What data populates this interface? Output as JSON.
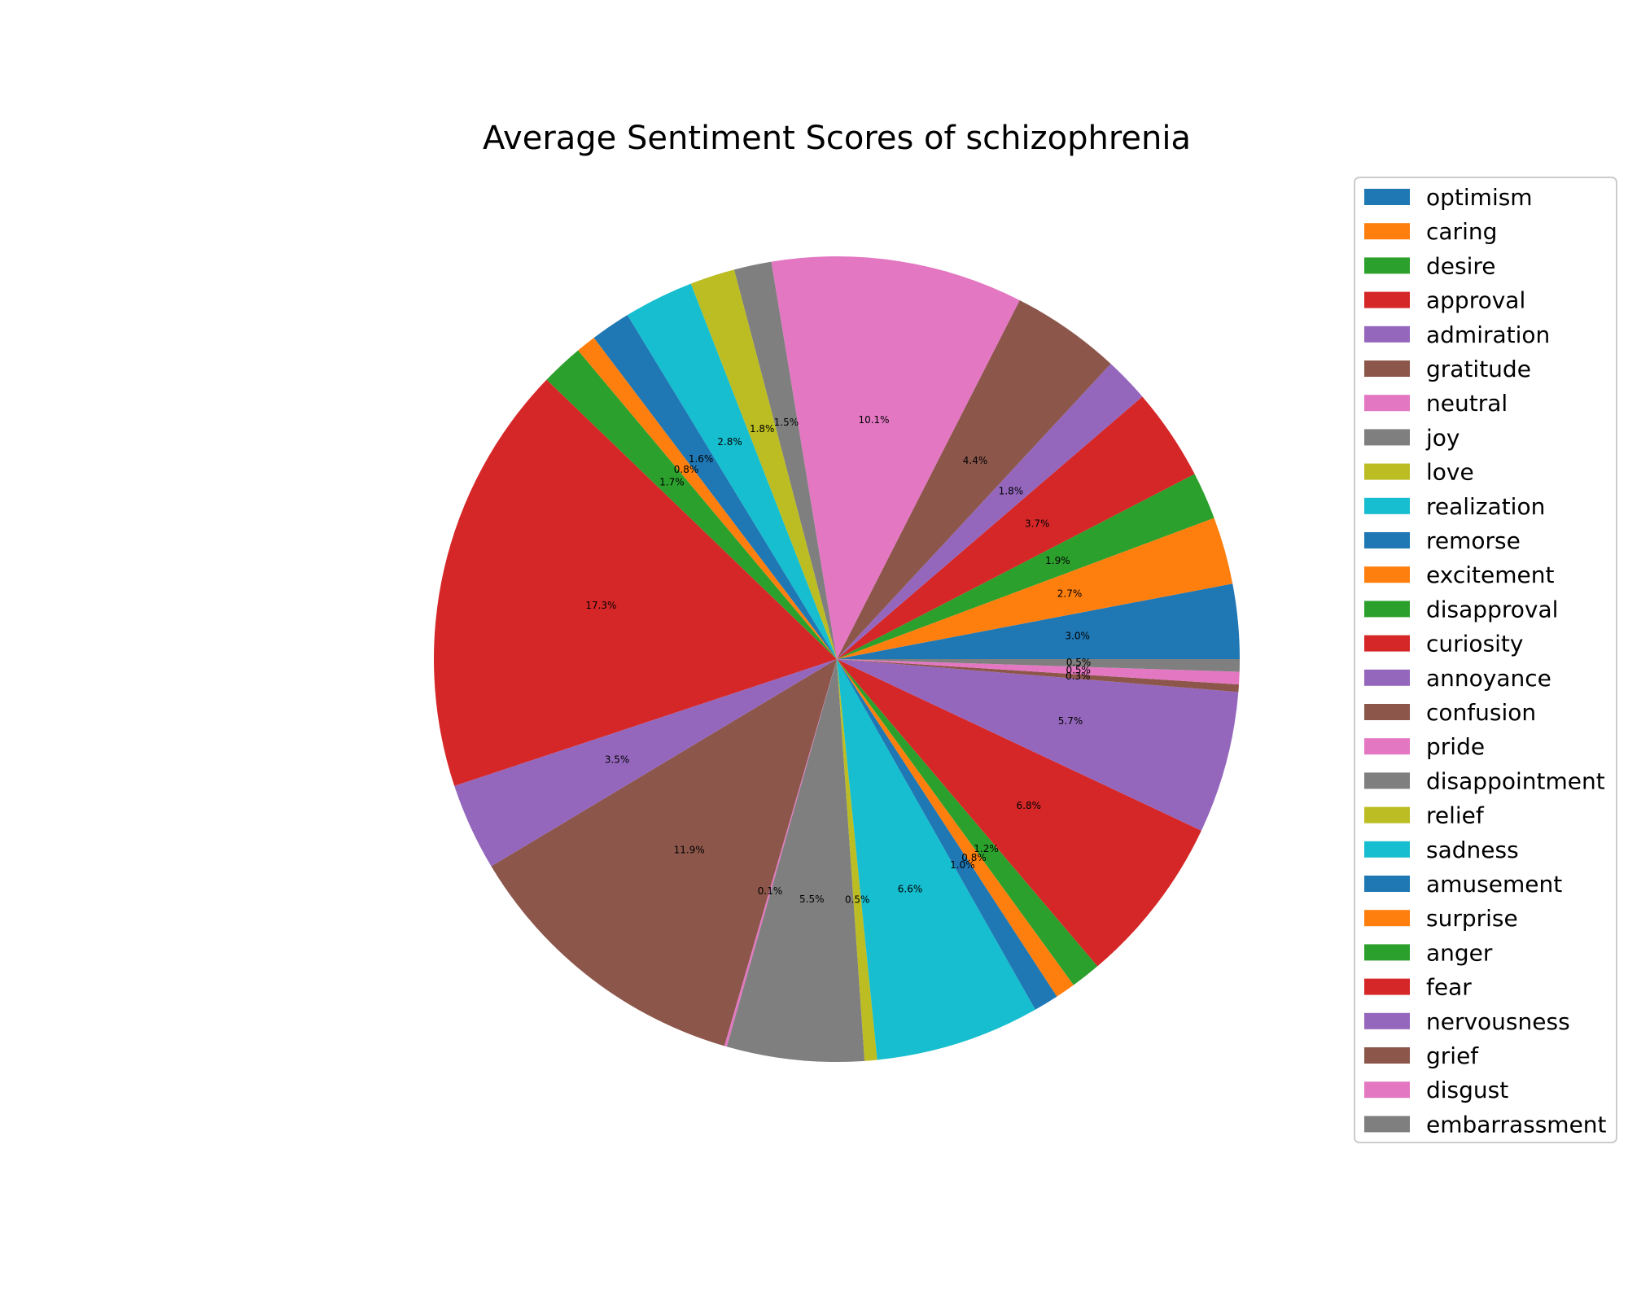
{
  "chart_data": {
    "type": "pie",
    "title": "Average Sentiment Scores of schizophrenia",
    "legend_position": "right",
    "start_angle_deg": 0,
    "direction": "counterclockwise",
    "slices": [
      {
        "label": "optimism",
        "value": 3.0,
        "pct_label": "3.0%",
        "color": "#1f77b4"
      },
      {
        "label": "caring",
        "value": 2.7,
        "pct_label": "2.7%",
        "color": "#ff7f0e"
      },
      {
        "label": "desire",
        "value": 1.9,
        "pct_label": "1.9%",
        "color": "#2ca02c"
      },
      {
        "label": "approval",
        "value": 3.7,
        "pct_label": "3.7%",
        "color": "#d62728"
      },
      {
        "label": "admiration",
        "value": 1.8,
        "pct_label": "1.8%",
        "color": "#9467bd"
      },
      {
        "label": "gratitude",
        "value": 4.4,
        "pct_label": "4.4%",
        "color": "#8c564b"
      },
      {
        "label": "neutral",
        "value": 10.1,
        "pct_label": "10.1%",
        "color": "#e377c2"
      },
      {
        "label": "joy",
        "value": 1.5,
        "pct_label": "1.5%",
        "color": "#7f7f7f"
      },
      {
        "label": "love",
        "value": 1.8,
        "pct_label": "1.8%",
        "color": "#bcbd22"
      },
      {
        "label": "realization",
        "value": 2.8,
        "pct_label": "2.8%",
        "color": "#17becf"
      },
      {
        "label": "remorse",
        "value": 1.6,
        "pct_label": "1.6%",
        "color": "#1f77b4"
      },
      {
        "label": "excitement",
        "value": 0.8,
        "pct_label": "0.8%",
        "color": "#ff7f0e"
      },
      {
        "label": "disapproval",
        "value": 1.7,
        "pct_label": "1.7%",
        "color": "#2ca02c"
      },
      {
        "label": "curiosity",
        "value": 17.3,
        "pct_label": "17.3%",
        "color": "#d62728"
      },
      {
        "label": "annoyance",
        "value": 3.5,
        "pct_label": "3.5%",
        "color": "#9467bd"
      },
      {
        "label": "confusion",
        "value": 11.9,
        "pct_label": "11.9%",
        "color": "#8c564b"
      },
      {
        "label": "pride",
        "value": 0.1,
        "pct_label": "0.1%",
        "color": "#e377c2"
      },
      {
        "label": "disappointment",
        "value": 5.5,
        "pct_label": "5.5%",
        "color": "#7f7f7f"
      },
      {
        "label": "relief",
        "value": 0.5,
        "pct_label": "0.5%",
        "color": "#bcbd22"
      },
      {
        "label": "sadness",
        "value": 6.6,
        "pct_label": "6.6%",
        "color": "#17becf"
      },
      {
        "label": "amusement",
        "value": 1.0,
        "pct_label": "1.0%",
        "color": "#1f77b4"
      },
      {
        "label": "surprise",
        "value": 0.8,
        "pct_label": "0.8%",
        "color": "#ff7f0e"
      },
      {
        "label": "anger",
        "value": 1.2,
        "pct_label": "1.2%",
        "color": "#2ca02c"
      },
      {
        "label": "fear",
        "value": 6.8,
        "pct_label": "6.8%",
        "color": "#d62728"
      },
      {
        "label": "nervousness",
        "value": 5.7,
        "pct_label": "5.7%",
        "color": "#9467bd"
      },
      {
        "label": "grief",
        "value": 0.3,
        "pct_label": "0.3%",
        "color": "#8c564b"
      },
      {
        "label": "disgust",
        "value": 0.5,
        "pct_label": "0.5%",
        "color": "#e377c2"
      },
      {
        "label": "embarrassment",
        "value": 0.5,
        "pct_label": "0.5%",
        "color": "#7f7f7f"
      }
    ]
  }
}
